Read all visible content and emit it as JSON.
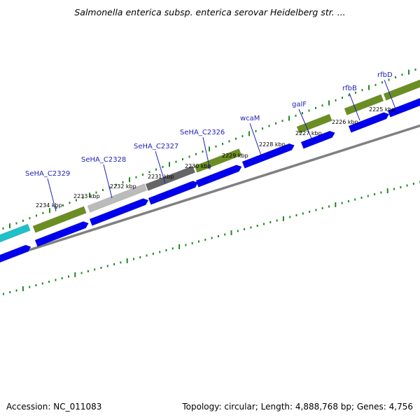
{
  "title": "Salmonella enterica subsp. enterica serovar Heidelberg str. ...",
  "footer": {
    "accession": "Accession: NC_011083",
    "stats": "Topology: circular; Length: 4,888,768 bp; Genes: 4,756"
  },
  "colors": {
    "background": "#ffffff",
    "ruler_ticks": "#1f8a1f",
    "forward_cds": "#0000ee",
    "feature_green": "#6b8e23",
    "feature_cyan": "#20c0c8",
    "feature_gray_light": "#bbbbbb",
    "feature_gray_dark": "#666666",
    "backbone": "#808080",
    "label_text": "#1f1fb8"
  },
  "kbp_labels": [
    "2234 kbp",
    "2233 kbp",
    "2232 kbp",
    "2231 kbp",
    "2230 kbp",
    "2229 kbp",
    "2228 kbp",
    "2227 kbp",
    "2226 kbp",
    "2225 kbp"
  ],
  "gene_labels": [
    "SeHA_C2329",
    "SeHA_C2328",
    "SeHA_C2327",
    "SeHA_C2326",
    "wcaM",
    "galF",
    "rfbB",
    "rfbD"
  ]
}
